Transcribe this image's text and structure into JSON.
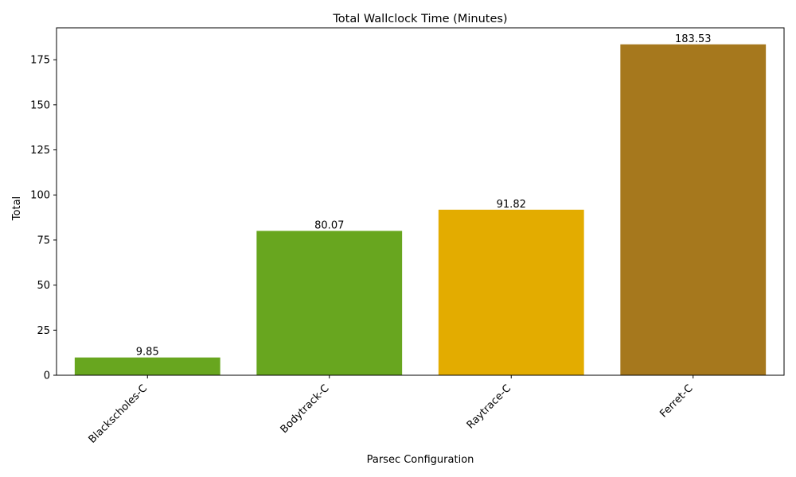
{
  "chart_data": {
    "type": "bar",
    "title": "Total Wallclock Time (Minutes)",
    "xlabel": "Parsec Configuration",
    "ylabel": "Total",
    "categories": [
      "Blackscholes-C",
      "Bodytrack-C",
      "Raytrace-C",
      "Ferret-C"
    ],
    "values": [
      9.85,
      80.07,
      91.82,
      183.53
    ],
    "data_labels": [
      "9.85",
      "80.07",
      "91.82",
      "183.53"
    ],
    "colors": [
      "#68a61f",
      "#68a61f",
      "#e3ac00",
      "#a6781d"
    ],
    "ylim": [
      0,
      192.7
    ],
    "yticks": [
      0,
      25,
      50,
      75,
      100,
      125,
      150,
      175
    ],
    "grid": false,
    "legend": "none"
  }
}
